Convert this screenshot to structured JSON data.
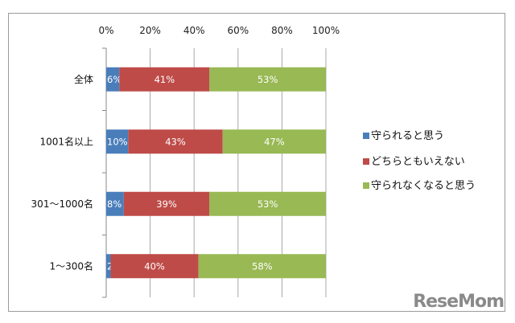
{
  "chart_data": {
    "type": "bar",
    "orientation": "horizontal",
    "stacked": true,
    "xlim": [
      0,
      100
    ],
    "x_ticks": [
      "0%",
      "20%",
      "40%",
      "60%",
      "80%",
      "100%"
    ],
    "grid": true,
    "legend_position": "right",
    "categories": [
      "全体",
      "1001名以上",
      "301～1000名",
      "1～300名"
    ],
    "series": [
      {
        "name": "守られると思う",
        "color": "#4a7ebb",
        "values": [
          6,
          10,
          8,
          2
        ],
        "labels": [
          "6%",
          "10%",
          "8%",
          "2%"
        ]
      },
      {
        "name": "どちらともいえない",
        "color": "#be4b48",
        "values": [
          41,
          43,
          39,
          40
        ],
        "labels": [
          "41%",
          "43%",
          "39%",
          "40%"
        ]
      },
      {
        "name": "守られなくなると思う",
        "color": "#98b954",
        "values": [
          53,
          47,
          53,
          58
        ],
        "labels": [
          "53%",
          "47%",
          "53%",
          "58%"
        ]
      }
    ]
  },
  "watermark": "ReseMom"
}
